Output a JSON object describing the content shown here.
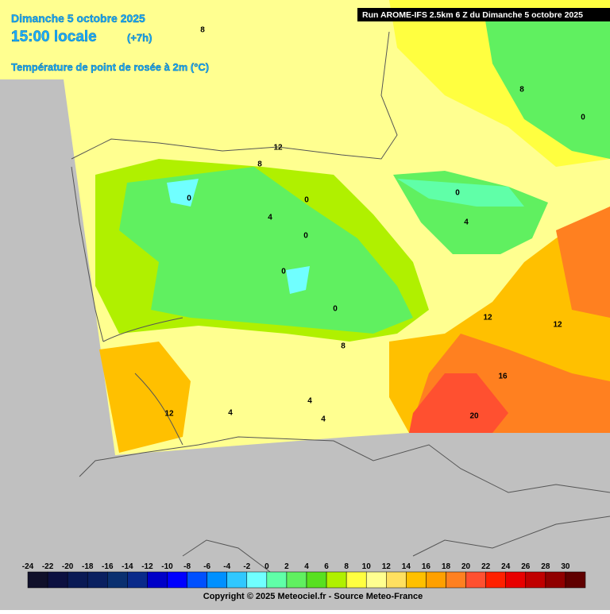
{
  "header": {
    "date": "Dimanche 5 octobre 2025",
    "time": "15:00 locale",
    "offset": "(+7h)",
    "parameter": "Température de point de rosée à 2m (°C)",
    "run": "Run AROME-IFS 2.5km 6 Z du Dimanche 5 octobre 2025"
  },
  "contour_labels": [
    8,
    8,
    12,
    8,
    4,
    0,
    0,
    0,
    0,
    0,
    4,
    0,
    4,
    0,
    4,
    12,
    12,
    16,
    20,
    12,
    8,
    4
  ],
  "legend": {
    "ticks": [
      -24,
      -22,
      -20,
      -18,
      -16,
      -14,
      -12,
      -10,
      -8,
      -6,
      -4,
      -2,
      0,
      2,
      4,
      6,
      8,
      10,
      12,
      14,
      16,
      18,
      20,
      22,
      24,
      26,
      28,
      30
    ],
    "colors": [
      "#10102a",
      "#0c1040",
      "#0a1a55",
      "#0a2060",
      "#0a3070",
      "#0a2a8a",
      "#0000c8",
      "#0000ff",
      "#0050ff",
      "#0090ff",
      "#30c8ff",
      "#70ffff",
      "#60ffa8",
      "#60f060",
      "#58e020",
      "#b0f000",
      "#ffff40",
      "#ffff90",
      "#ffe060",
      "#ffc000",
      "#ffa000",
      "#ff8020",
      "#ff5030",
      "#ff2000",
      "#e80000",
      "#c00000",
      "#900000",
      "#600000"
    ]
  },
  "footer": {
    "copyright": "Copyright © 2025 Meteociel.fr - Source Meteo-France"
  }
}
